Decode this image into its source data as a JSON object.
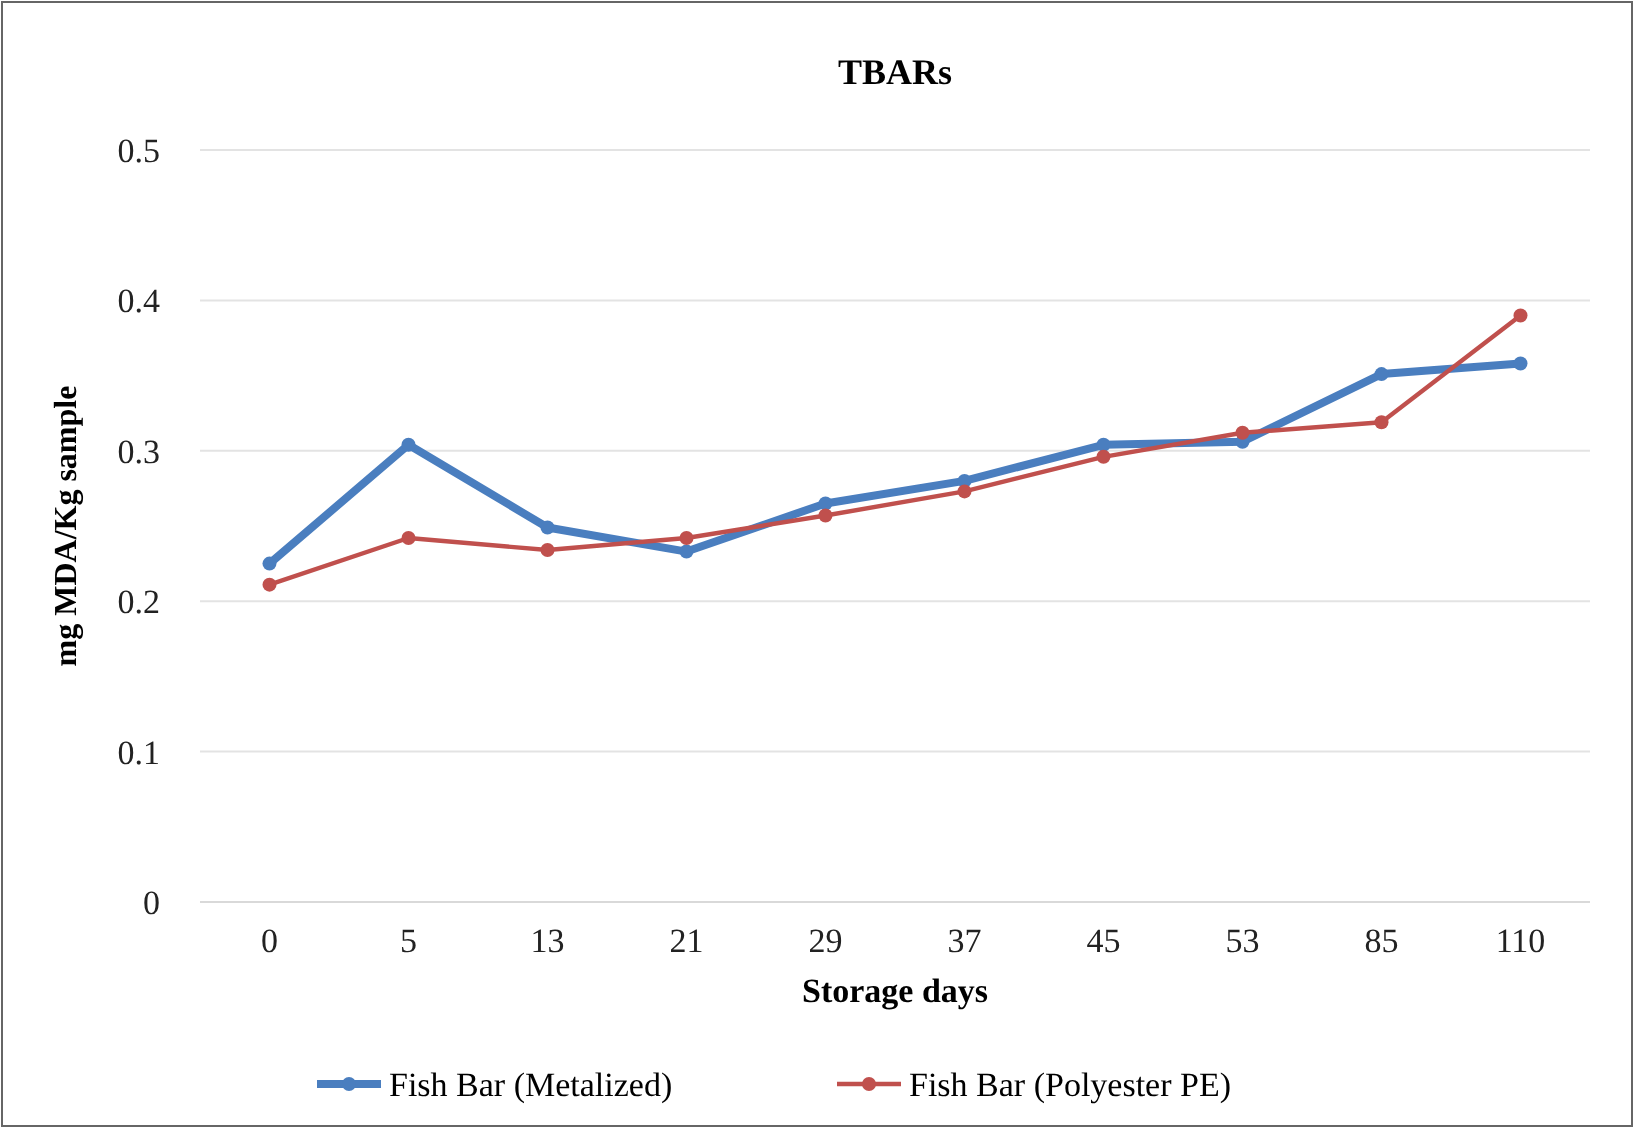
{
  "chart_data": {
    "type": "line",
    "title": "TBARs",
    "xlabel": "Storage days",
    "ylabel": "mg MDA/Kg sample",
    "categories": [
      "0",
      "5",
      "13",
      "21",
      "29",
      "37",
      "45",
      "53",
      "85",
      "110"
    ],
    "series": [
      {
        "name": "Fish Bar (Metalized)",
        "color": "#4a7ebf",
        "values": [
          0.225,
          0.304,
          0.249,
          0.233,
          0.265,
          0.28,
          0.304,
          0.306,
          0.351,
          0.358
        ]
      },
      {
        "name": "Fish Bar (Polyester PE)",
        "color": "#c0504d",
        "values": [
          0.211,
          0.242,
          0.234,
          0.242,
          0.257,
          0.273,
          0.296,
          0.312,
          0.319,
          0.39
        ]
      }
    ],
    "ylim": [
      0,
      0.5
    ],
    "yticks": [
      0,
      0.1,
      0.2,
      0.3,
      0.4,
      0.5
    ],
    "grid": "y",
    "legend": "bottom",
    "marker": "circle",
    "line_style": "solid"
  }
}
